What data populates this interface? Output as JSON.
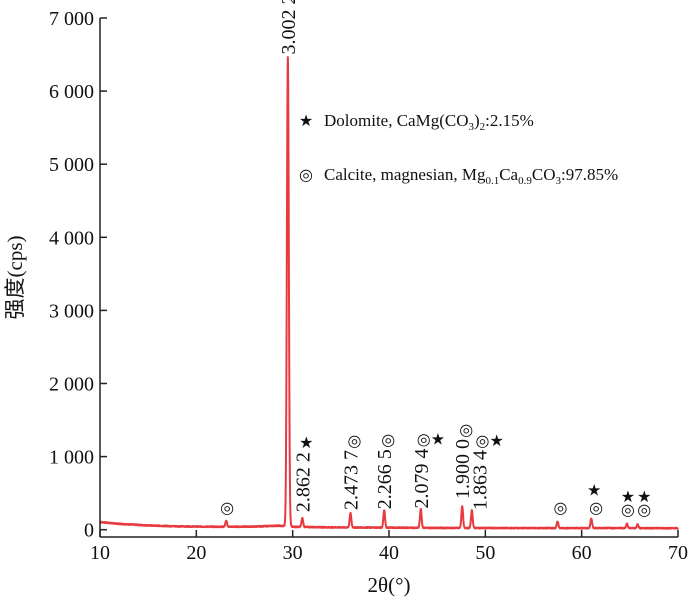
{
  "chart_data": {
    "type": "line",
    "title": "",
    "xlabel": "2θ(°)",
    "ylabel": "强度(cps)",
    "xlim": [
      10,
      70
    ],
    "ylim": [
      -100,
      7000
    ],
    "x_ticks": [
      {
        "value": 10,
        "label": "10"
      },
      {
        "value": 20,
        "label": "20"
      },
      {
        "value": 30,
        "label": "30"
      },
      {
        "value": 40,
        "label": "40"
      },
      {
        "value": 50,
        "label": "50"
      },
      {
        "value": 60,
        "label": "60"
      },
      {
        "value": 70,
        "label": "70"
      }
    ],
    "y_ticks": [
      {
        "value": 0,
        "label": "0"
      },
      {
        "value": 1000,
        "label": "1 000"
      },
      {
        "value": 2000,
        "label": "2 000"
      },
      {
        "value": 3000,
        "label": "3 000"
      },
      {
        "value": 4000,
        "label": "4 000"
      },
      {
        "value": 5000,
        "label": "5 000"
      },
      {
        "value": 6000,
        "label": "6 000"
      },
      {
        "value": 7000,
        "label": "7 000"
      }
    ],
    "grid": false,
    "line_color": "#e8393f",
    "baseline": [
      [
        10,
        105
      ],
      [
        12,
        80
      ],
      [
        15,
        58
      ],
      [
        18,
        46
      ],
      [
        22,
        40
      ],
      [
        26,
        42
      ],
      [
        28.5,
        55
      ],
      [
        30,
        40
      ],
      [
        34,
        32
      ],
      [
        40,
        28
      ],
      [
        46,
        24
      ],
      [
        52,
        22
      ],
      [
        58,
        22
      ],
      [
        64,
        22
      ],
      [
        70,
        20
      ]
    ],
    "peaks": [
      {
        "x": 23.1,
        "y": 80
      },
      {
        "x": 29.5,
        "y": 6420
      },
      {
        "x": 31.0,
        "y": 120
      },
      {
        "x": 36.0,
        "y": 200
      },
      {
        "x": 39.5,
        "y": 240
      },
      {
        "x": 43.3,
        "y": 260
      },
      {
        "x": 47.6,
        "y": 300
      },
      {
        "x": 48.6,
        "y": 240
      },
      {
        "x": 57.5,
        "y": 90
      },
      {
        "x": 61.0,
        "y": 130
      },
      {
        "x": 64.7,
        "y": 60
      },
      {
        "x": 65.8,
        "y": 50
      }
    ],
    "peak_labels": [
      {
        "x": 29.5,
        "text": "3.002 2",
        "markers": "◎",
        "text_bottom": 6500
      },
      {
        "x": 31.0,
        "text": "2.862 2",
        "markers": "★",
        "text_bottom": 240
      },
      {
        "x": 36.0,
        "text": "2.473 7",
        "markers": "◎",
        "text_bottom": 270
      },
      {
        "x": 39.5,
        "text": "2.266 5",
        "markers": "◎",
        "text_bottom": 280
      },
      {
        "x": 43.3,
        "text": "2.079 4",
        "markers": "◎★",
        "text_bottom": 290
      },
      {
        "x": 47.6,
        "text": "1.900 0",
        "markers": "◎",
        "text_bottom": 420
      },
      {
        "x": 49.4,
        "text": "1.863 4",
        "markers": "◎★",
        "text_bottom": 270
      }
    ],
    "markers": [
      {
        "x": 23.2,
        "y": 230,
        "symbol": "◎"
      },
      {
        "x": 57.8,
        "y": 230,
        "symbol": "◎"
      },
      {
        "x": 61.5,
        "y": 230,
        "symbol": "◎"
      },
      {
        "x": 61.3,
        "y": 470,
        "symbol": "★"
      },
      {
        "x": 64.8,
        "y": 200,
        "symbol": "◎"
      },
      {
        "x": 64.8,
        "y": 380,
        "symbol": "★"
      },
      {
        "x": 66.5,
        "y": 200,
        "symbol": "◎"
      },
      {
        "x": 66.5,
        "y": 380,
        "symbol": "★"
      }
    ],
    "legend": {
      "placement": "top-right",
      "entries": [
        {
          "symbol": "★",
          "parts": [
            {
              "t": "Dolomite, CaMg(CO"
            },
            {
              "t": "3",
              "sub": true
            },
            {
              "t": ")"
            },
            {
              "t": "2",
              "sub": true
            },
            {
              "t": ":2.15%"
            }
          ]
        },
        {
          "symbol": "◎",
          "parts": [
            {
              "t": "Calcite, magnesian, Mg"
            },
            {
              "t": "0.1",
              "sub": true
            },
            {
              "t": "Ca"
            },
            {
              "t": "0.9",
              "sub": true
            },
            {
              "t": "CO"
            },
            {
              "t": "3",
              "sub": true
            },
            {
              "t": ":97.85%"
            }
          ]
        }
      ]
    }
  }
}
